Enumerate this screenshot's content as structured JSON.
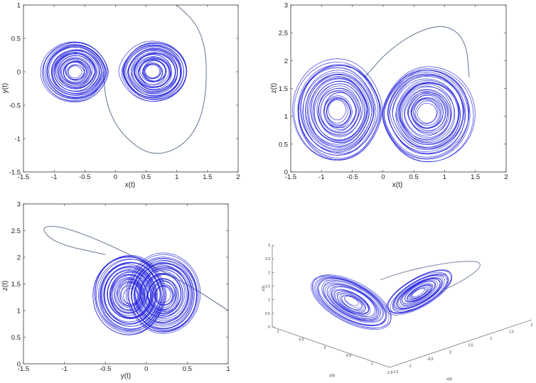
{
  "chart_data": [
    {
      "type": "line",
      "title": "",
      "xlabel": "x(t)",
      "ylabel": "y(t)",
      "xlim": [
        -1.5,
        2
      ],
      "ylim": [
        -1.5,
        1
      ],
      "xticks": [
        "-1.5",
        "-1",
        "-0.5",
        "0",
        "0.5",
        "1",
        "1.5",
        "2"
      ],
      "yticks": [
        "-1.5",
        "-1",
        "-0.5",
        "0",
        "0.5",
        "1"
      ],
      "grid": false,
      "series_color": "#1a1adc",
      "transient_color": "#6e7f9a",
      "attractor": {
        "lobe_centers": [
          [
            -0.65,
            0.0
          ],
          [
            0.62,
            0.0
          ]
        ],
        "lobe_half_widths": [
          0.55,
          0.55
        ],
        "lobe_half_heights": [
          0.45,
          0.45
        ]
      },
      "transient": [
        [
          1.0,
          1.0
        ],
        [
          1.35,
          0.7
        ],
        [
          1.5,
          0.2
        ],
        [
          1.45,
          -0.6
        ],
        [
          1.15,
          -1.1
        ],
        [
          0.6,
          -1.28
        ],
        [
          0.1,
          -0.95
        ],
        [
          -0.15,
          -0.5
        ],
        [
          -0.2,
          0.0
        ]
      ]
    },
    {
      "type": "line",
      "title": "",
      "xlabel": "x(t)",
      "ylabel": "z(t)",
      "xlim": [
        -1.5,
        2
      ],
      "ylim": [
        0,
        3
      ],
      "xticks": [
        "-1.5",
        "-1",
        "-0.5",
        "0",
        "0.5",
        "1",
        "1.5",
        "2"
      ],
      "yticks": [
        "0",
        "0.5",
        "1",
        "1.5",
        "2",
        "2.5",
        "3"
      ],
      "grid": false,
      "series_color": "#1a1adc",
      "transient_color": "#6e7f9a",
      "attractor": {
        "lobe_centers": [
          [
            -0.72,
            1.1
          ],
          [
            0.72,
            1.05
          ]
        ],
        "lobe_half_widths": [
          0.72,
          0.75
        ],
        "lobe_half_heights": [
          0.9,
          0.85
        ]
      },
      "transient": [
        [
          1.4,
          1.7
        ],
        [
          1.35,
          2.35
        ],
        [
          1.05,
          2.65
        ],
        [
          0.6,
          2.55
        ],
        [
          0.1,
          2.2
        ],
        [
          -0.3,
          1.7
        ]
      ]
    },
    {
      "type": "line",
      "title": "",
      "xlabel": "y(t)",
      "ylabel": "z(t)",
      "xlim": [
        -1.5,
        1
      ],
      "ylim": [
        0,
        3
      ],
      "xticks": [
        "-1.5",
        "-1",
        "-0.5",
        "0",
        "0.5",
        "1"
      ],
      "yticks": [
        "0",
        "0.5",
        "1",
        "1.5",
        "2",
        "2.5",
        "3"
      ],
      "grid": false,
      "series_color": "#1a1adc",
      "transient_color": "#6e7f9a",
      "attractor": {
        "lobe_centers": [
          [
            -0.2,
            1.3
          ],
          [
            0.2,
            1.3
          ]
        ],
        "lobe_half_widths": [
          0.45,
          0.45
        ],
        "lobe_half_heights": [
          0.75,
          0.75
        ]
      },
      "transient": [
        [
          1.0,
          1.0
        ],
        [
          0.5,
          1.5
        ],
        [
          -0.2,
          2.05
        ],
        [
          -0.7,
          2.4
        ],
        [
          -1.1,
          2.6
        ],
        [
          -1.3,
          2.55
        ],
        [
          -1.1,
          2.25
        ],
        [
          -0.5,
          2.05
        ]
      ]
    },
    {
      "type": "line",
      "title": "",
      "view": "3d",
      "xlabel": "x(t)",
      "ylabel": "y(t)",
      "zlabel": "z(t)",
      "zticks": [
        "0",
        "0.5",
        "1",
        "1.5",
        "2",
        "2.5",
        "3"
      ],
      "y_axis_ticks": [
        "1",
        "0.5",
        "0",
        "-0.5",
        "-1",
        "-1.5"
      ],
      "x_axis_ticks": [
        "-1.5",
        "-1",
        "-0.5",
        "0",
        "0.5",
        "1",
        "1.5",
        "2"
      ],
      "grid": false,
      "series_color": "#1a1adc",
      "transient_color": "#6e7f9a"
    }
  ]
}
